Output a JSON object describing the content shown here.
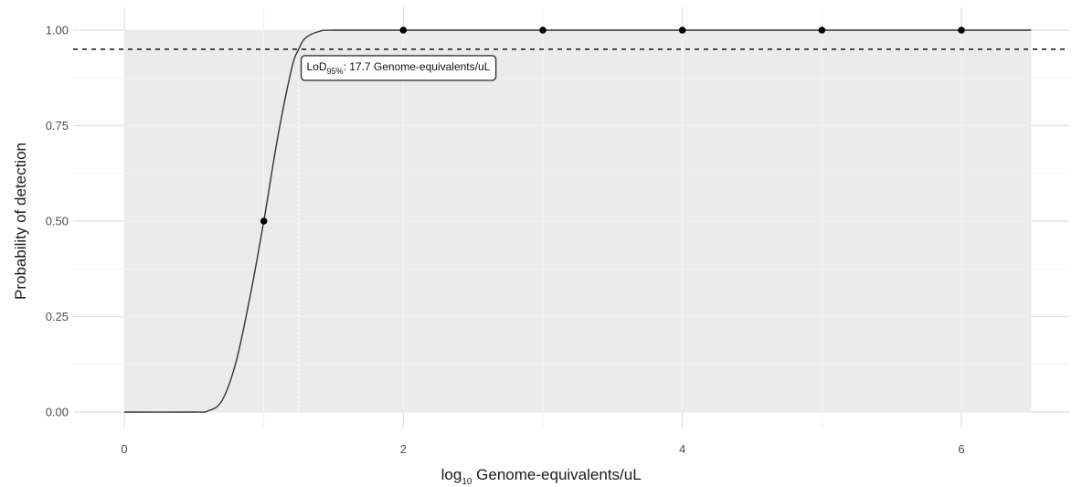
{
  "chart_data": {
    "type": "scatter",
    "xlabel": {
      "prefix": "log",
      "subscript": "10",
      "suffix": " Genome-equivalents/uL"
    },
    "ylabel": "Probability of detection",
    "xlim": [
      0,
      6.5
    ],
    "ylim": [
      0,
      1
    ],
    "x_ticks": [
      0,
      2,
      4,
      6
    ],
    "x_tick_labels": [
      "0",
      "2",
      "4",
      "6"
    ],
    "y_ticks": [
      0,
      0.25,
      0.5,
      0.75,
      1
    ],
    "y_tick_labels": [
      "0.00",
      "0.25",
      "0.50",
      "0.75",
      "1.00"
    ],
    "grid": true,
    "points": {
      "x": [
        1,
        2,
        3,
        4,
        5,
        6
      ],
      "y": [
        0.5,
        1,
        1,
        1,
        1,
        1
      ]
    },
    "fitted_curve": {
      "x": [
        0,
        0.5,
        0.6,
        0.7,
        0.8,
        0.9,
        1.0,
        1.1,
        1.2,
        1.25,
        1.3,
        1.4,
        1.5,
        2,
        3,
        4,
        5,
        6,
        6.5
      ],
      "y": [
        0,
        0,
        0.003,
        0.03,
        0.13,
        0.3,
        0.5,
        0.72,
        0.9,
        0.95,
        0.98,
        0.997,
        1,
        1,
        1,
        1,
        1,
        1,
        1
      ]
    },
    "threshold_y": 0.95,
    "lod_x": 1.248,
    "annotation": {
      "label": "LoD",
      "subscript": "95%",
      "text": ": 17.7 Genome-equivalents/uL"
    },
    "colors": {
      "panel_bg": "#ebebeb",
      "gridline": "#dedede",
      "curve": "#333333",
      "points": "#000000",
      "threshold": "#333333",
      "lod_line": "#ffffff"
    }
  }
}
